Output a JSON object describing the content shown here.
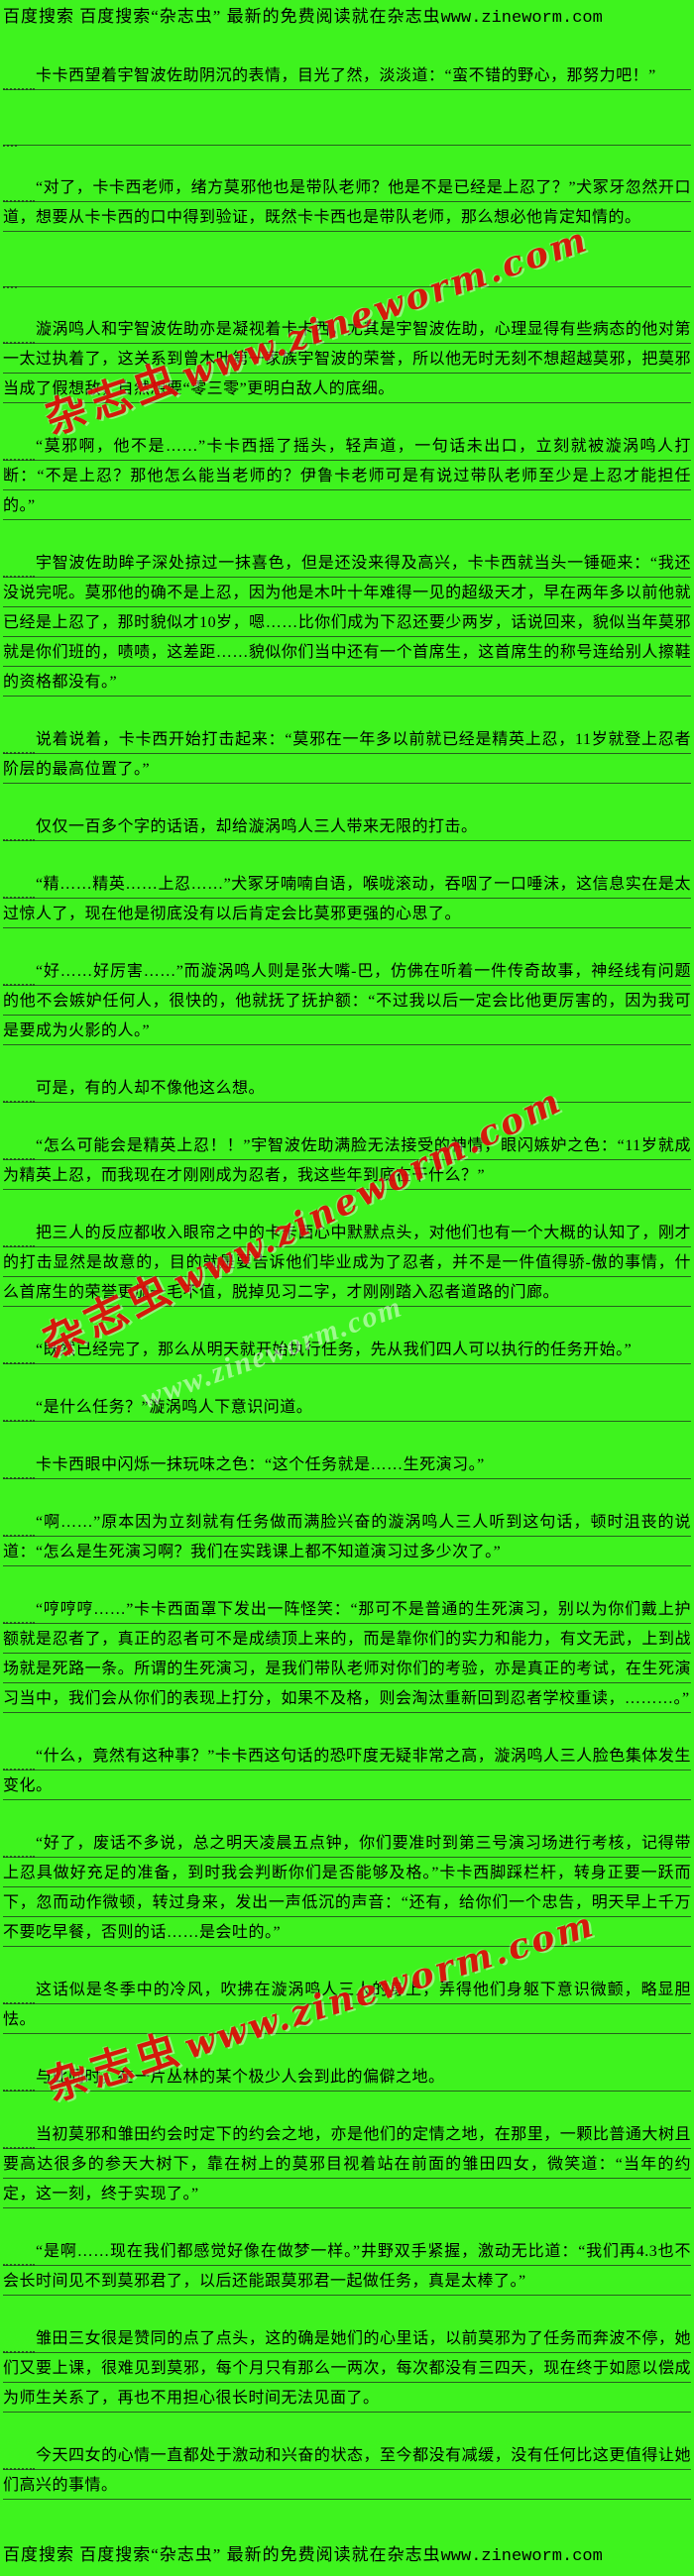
{
  "page": {
    "background_color": "#3EF31E",
    "rule_line_color": "rgba(30,50,30,0.75)",
    "text_color": "#000000",
    "watermark_color": "#E00A0A"
  },
  "header": {
    "prefix": "百度搜索 百度搜索“杂志虫” 最新的免费阅读就在杂志虫",
    "url": "www.zineworm.com"
  },
  "footer": {
    "prefix": "百度搜索 百度搜索“杂志虫” 最新的免费阅读就在杂志虫",
    "url": "www.zineworm.com"
  },
  "watermarks": [
    {
      "brand": "杂志虫",
      "url": "www.zineworm.com"
    },
    {
      "brand": "杂志虫",
      "url": "www.zineworm.com"
    },
    {
      "brand": "杂志虫",
      "url": "www.zineworm.com"
    }
  ],
  "ghost_watermark": {
    "text": "www.zineworm.com"
  },
  "paragraphs": [
    {
      "text": "卡卡西望着宇智波佐助阴沉的表情，目光了然，淡淡道：“蛮不错的野心，那努力吧！”",
      "blank_after": true
    },
    {
      "text": "“对了，卡卡西老师，绪方莫邪他也是带队老师？他是不是已经是上忍了？”犬冢牙忽然开口道，想要从卡卡西的口中得到验证，既然卡卡西也是带队老师，那么想必他肯定知情的。",
      "blank_after": true
    },
    {
      "text": "漩涡鸣人和宇智波佐助亦是凝视着卡卡西，尤其是宇智波佐助，心理显得有些病态的他对第一太过执着了，这关系到曾木叶第一家族宇智波的荣誉，所以他无时无刻不想超越莫邪，把莫邪当成了假想敌，自然想要“零三零”更明白敌人的底细。",
      "blank_after": false
    },
    {
      "text": "“莫邪啊，他不是……”卡卡西摇了摇头，轻声道，一句话未出口，立刻就被漩涡鸣人打断：“不是上忍？那他怎么能当老师的？伊鲁卡老师可是有说过带队老师至少是上忍才能担任的。”",
      "blank_after": false
    },
    {
      "text": "宇智波佐助眸子深处掠过一抹喜色，但是还没来得及高兴，卡卡西就当头一锤砸来：“我还没说完呢。莫邪他的确不是上忍，因为他是木叶十年难得一见的超级天才，早在两年多以前他就已经是上忍了，那时貌似才10岁，嗯……比你们成为下忍还要少两岁，话说回来，貌似当年莫邪就是你们班的，啧啧，这差距……貌似你们当中还有一个首席生，这首席生的称号连给别人擦鞋的资格都没有。”",
      "blank_after": false
    },
    {
      "text": "说着说着，卡卡西开始打击起来：“莫邪在一年多以前就已经是精英上忍，11岁就登上忍者阶层的最高位置了。”",
      "blank_after": false
    },
    {
      "text": "仅仅一百多个字的话语，却给漩涡鸣人三人带来无限的打击。",
      "blank_after": false
    },
    {
      "text": "“精……精英……上忍……”犬冢牙喃喃自语，喉咙滚动，吞咽了一口唾沫，这信息实在是太过惊人了，现在他是彻底没有以后肯定会比莫邪更强的心思了。",
      "blank_after": false
    },
    {
      "text": "“好……好厉害……”而漩涡鸣人则是张大嘴-巴，仿佛在听着一件传奇故事，神经线有问题的他不会嫉妒任何人，很快的，他就抚了抚护额：“不过我以后一定会比他更厉害的，因为我可是要成为火影的人。”",
      "blank_after": false
    },
    {
      "text": "可是，有的人却不像他这么想。",
      "blank_after": false
    },
    {
      "text": "“怎么可能会是精英上忍！！”宇智波佐助满脸无法接受的神情，眼闪嫉妒之色：“11岁就成为精英上忍，而我现在才刚刚成为忍者，我这些年到底在干什么？”",
      "blank_after": false
    },
    {
      "text": "把三人的反应都收入眼帘之中的卡卡西心中默默点头，对他们也有一个大概的认知了，刚才的打击显然是故意的，目的就是要告诉他们毕业成为了忍者，并不是一件值得骄-傲的事情，什么首席生的荣誉更加一毛不值，脱掉见习二字，才刚刚踏入忍者道路的门廊。",
      "blank_after": false
    },
    {
      "text": "“既然已经完了，那么从明天就开始执行任务，先从我们四人可以执行的任务开始。”",
      "blank_after": false
    },
    {
      "text": "“是什么任务？”漩涡鸣人下意识问道。",
      "blank_after": false
    },
    {
      "text": "卡卡西眼中闪烁一抹玩味之色：“这个任务就是……生死演习。”",
      "blank_after": false
    },
    {
      "text": "“啊……”原本因为立刻就有任务做而满脸兴奋的漩涡鸣人三人听到这句话，顿时沮丧的说道：“怎么是生死演习啊？我们在实践课上都不知道演习过多少次了。”",
      "blank_after": false
    },
    {
      "text": "“哼哼哼……”卡卡西面罩下发出一阵怪笑：“那可不是普通的生死演习，别以为你们戴上护额就是忍者了，真正的忍者可不是成绩顶上来的，而是靠你们的实力和能力，有文无武，上到战场就是死路一条。所谓的生死演习，是我们带队老师对你们的考验，亦是真正的考试，在生死演习当中，我们会从你们的表现上打分，如果不及格，则会淘汰重新回到忍者学校重读，………。”",
      "blank_after": false
    },
    {
      "text": "“什么，竟然有这种事？”卡卡西这句话的恐吓度无疑非常之高，漩涡鸣人三人脸色集体发生变化。",
      "blank_after": false
    },
    {
      "text": "“好了，废话不多说，总之明天凌晨五点钟，你们要准时到第三号演习场进行考核，记得带上忍具做好充足的准备，到时我会判断你们是否能够及格。”卡卡西脚踩栏杆，转身正要一跃而下，忽而动作微顿，转过身来，发出一声低沉的声音：“还有，给你们一个忠告，明天早上千万不要吃早餐，否则的话……是会吐的。”",
      "blank_after": false
    },
    {
      "text": "这话似是冬季中的冷风，吹拂在漩涡鸣人三人的身上，弄得他们身躯下意识微颤，略显胆怯。",
      "blank_after": false
    },
    {
      "text": "与此同时，在一片丛林的某个极少人会到此的偏僻之地。",
      "blank_after": false
    },
    {
      "text": "当初莫邪和雏田约会时定下的约会之地，亦是他们的定情之地，在那里，一颗比普通大树且要高达很多的参天大树下，靠在树上的莫邪目视着站在前面的雏田四女，微笑道：“当年的约定，这一刻，终于实现了。”",
      "blank_after": false
    },
    {
      "text": "“是啊……现在我们都感觉好像在做梦一样。”井野双手紧握，激动无比道：“我们再4.3也不会长时间见不到莫邪君了，以后还能跟莫邪君一起做任务，真是太棒了。”",
      "blank_after": false
    },
    {
      "text": "雏田三女很是赞同的点了点头，这的确是她们的心里话，以前莫邪为了任务而奔波不停，她们又要上课，很难见到莫邪，每个月只有那么一两次，每次都没有三四天，现在终于如愿以偿成为师生关系了，再也不用担心很长时间无法见面了。",
      "blank_after": false
    },
    {
      "text": "今天四女的心情一直都处于激动和兴奋的状态，至今都没有减缓，没有任何比这更值得让她们高兴的事情。",
      "blank_after": false
    }
  ]
}
